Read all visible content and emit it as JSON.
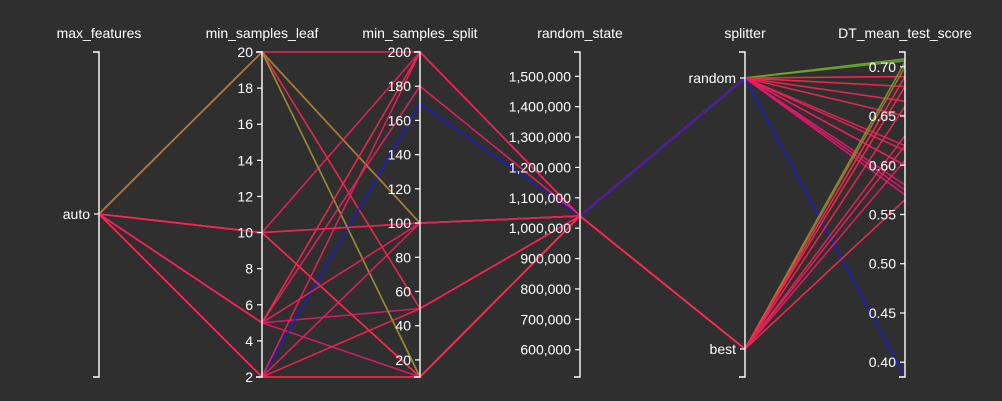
{
  "chart_data": {
    "type": "parallel_coordinates",
    "color_metric": "DT_mean_test_score",
    "colors": {
      "high": "#22ee22",
      "mid": "#ff2a4a",
      "low": "#1b1bdd",
      "line_default": "#e0186c"
    },
    "axes": [
      {
        "name": "max_features",
        "kind": "categorical",
        "categories": [
          "auto"
        ]
      },
      {
        "name": "min_samples_leaf",
        "kind": "numeric",
        "range": [
          2,
          20
        ],
        "ticks": [
          2,
          4,
          6,
          8,
          10,
          12,
          14,
          16,
          18,
          20
        ],
        "tick_labels": [
          "2",
          "4",
          "6",
          "8",
          "10",
          "12",
          "14",
          "16",
          "18",
          "20"
        ]
      },
      {
        "name": "min_samples_split",
        "kind": "numeric",
        "range": [
          10,
          200
        ],
        "ticks": [
          20,
          40,
          60,
          80,
          100,
          120,
          140,
          160,
          180,
          200
        ],
        "tick_labels": [
          "20",
          "40",
          "60",
          "80",
          "100",
          "120",
          "140",
          "160",
          "180",
          "200"
        ]
      },
      {
        "name": "random_state",
        "kind": "numeric",
        "range": [
          510000,
          1580000
        ],
        "ticks": [
          600000,
          700000,
          800000,
          900000,
          1000000,
          1100000,
          1200000,
          1300000,
          1400000,
          1500000
        ],
        "tick_labels": [
          "600,000",
          "700,000",
          "800,000",
          "900,000",
          "1,000,000",
          "1,100,000",
          "1,200,000",
          "1,300,000",
          "1,400,000",
          "1,500,000"
        ]
      },
      {
        "name": "splitter",
        "kind": "categorical",
        "categories": [
          "best",
          "random"
        ]
      },
      {
        "name": "DT_mean_test_score",
        "kind": "numeric",
        "range": [
          0.385,
          0.715
        ],
        "ticks": [
          0.4,
          0.45,
          0.5,
          0.55,
          0.6,
          0.65,
          0.7
        ],
        "tick_labels": [
          "0.40",
          "0.45",
          "0.50",
          "0.55",
          "0.60",
          "0.65",
          "0.70"
        ]
      }
    ],
    "records": [
      [
        "auto",
        20,
        100,
        1040000,
        "random",
        0.708
      ],
      [
        "auto",
        20,
        100,
        1040000,
        "random",
        0.706
      ],
      [
        "auto",
        20,
        10,
        1040000,
        "random",
        0.69
      ],
      [
        "auto",
        20,
        50,
        1040000,
        "random",
        0.68
      ],
      [
        "auto",
        20,
        200,
        1040000,
        "random",
        0.665
      ],
      [
        "auto",
        10,
        200,
        1040000,
        "random",
        0.62
      ],
      [
        "auto",
        10,
        10,
        1040000,
        "random",
        0.6
      ],
      [
        "auto",
        10,
        100,
        1040000,
        "random",
        0.58
      ],
      [
        "auto",
        5,
        10,
        1040000,
        "random",
        0.575
      ],
      [
        "auto",
        5,
        50,
        1040000,
        "random",
        0.57
      ],
      [
        "auto",
        5,
        180,
        1040000,
        "random",
        0.615
      ],
      [
        "auto",
        2,
        10,
        1040000,
        "random",
        0.6
      ],
      [
        "auto",
        2,
        50,
        1040000,
        "random",
        0.65
      ],
      [
        "auto",
        2,
        170,
        1040000,
        "random",
        0.385
      ],
      [
        "auto",
        20,
        10,
        1040000,
        "best",
        0.705
      ],
      [
        "auto",
        20,
        100,
        1040000,
        "best",
        0.7
      ],
      [
        "auto",
        10,
        10,
        1040000,
        "best",
        0.69
      ],
      [
        "auto",
        10,
        100,
        1040000,
        "best",
        0.66
      ],
      [
        "auto",
        5,
        200,
        1040000,
        "best",
        0.68
      ],
      [
        "auto",
        5,
        100,
        1040000,
        "best",
        0.63
      ],
      [
        "auto",
        2,
        200,
        1040000,
        "best",
        0.62
      ],
      [
        "auto",
        2,
        100,
        1040000,
        "best",
        0.605
      ],
      [
        "auto",
        2,
        10,
        1040000,
        "best",
        0.565
      ]
    ]
  }
}
